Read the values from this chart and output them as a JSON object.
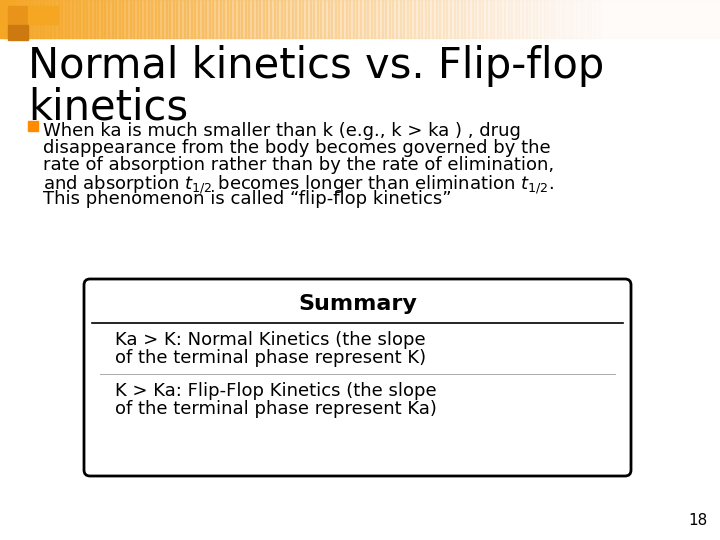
{
  "bg_color": "#ffffff",
  "title_line1": "Normal kinetics vs. Flip-flop",
  "title_line2": "kinetics",
  "title_fontsize": 30,
  "title_color": "#000000",
  "bullet_color": "#FF8C00",
  "bullet_text_line1": "When ka is much smaller than k (e.g., k > ka ) , drug",
  "bullet_text_line2": "disappearance from the body becomes governed by the",
  "bullet_text_line3": "rate of absorption rather than by the rate of elimination,",
  "bullet_text_line4_pre": "and absorption t",
  "bullet_text_line4_mid": " becomes longer than elimination t",
  "bullet_text_line5": "This phenomenon is called “flip-flop kinetics”",
  "bullet_fontsize": 13,
  "summary_title": "Summary",
  "summary_title_fontsize": 16,
  "summary_line1": "Ka > K: Normal Kinetics (the slope",
  "summary_line2": "of the terminal phase represent K)",
  "summary_line3": "K > Ka: Flip-Flop Kinetics (the slope",
  "summary_line4": "of the terminal phase represent Ka)",
  "summary_fontsize": 13,
  "box_bg": "#ffffff",
  "box_border": "#000000",
  "page_number": "18",
  "page_number_fontsize": 11,
  "banner_color_left": "#F5A623",
  "banner_color_right": "#FFF0E8",
  "sq1_color": "#E8941A",
  "sq2_color": "#F5A623",
  "sq3_color": "#CC7A10"
}
